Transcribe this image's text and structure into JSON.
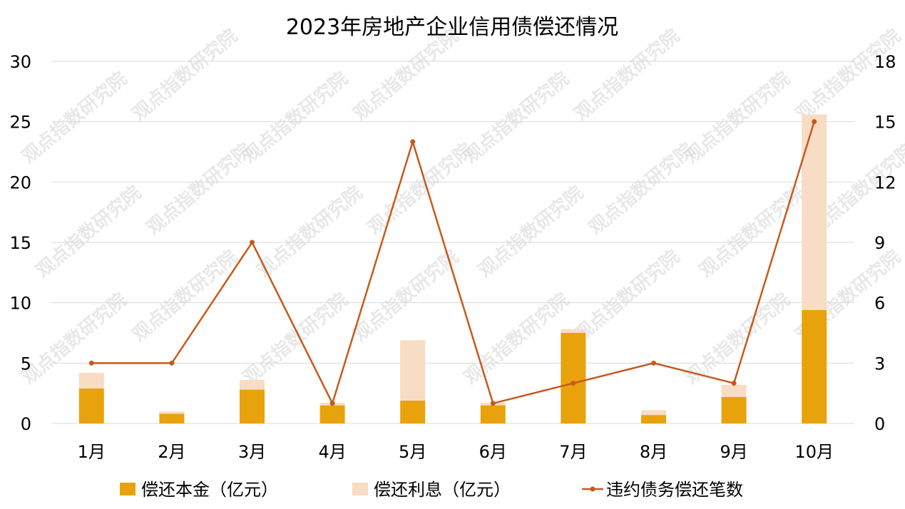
{
  "chart_data": {
    "type": "bar",
    "title": "2023年房地产企业信用债偿还情况",
    "categories": [
      "1月",
      "2月",
      "3月",
      "4月",
      "5月",
      "6月",
      "7月",
      "8月",
      "9月",
      "10月"
    ],
    "series": [
      {
        "name": "偿还本金（亿元）",
        "type": "bar",
        "stack": "main",
        "axis": "left",
        "color": "#E8A30C",
        "values": [
          2.9,
          0.8,
          2.8,
          1.5,
          1.9,
          1.5,
          7.5,
          0.7,
          2.2,
          9.4
        ]
      },
      {
        "name": "偿还利息（亿元）",
        "type": "bar",
        "stack": "main",
        "axis": "left",
        "color": "#F8DCC4",
        "values": [
          1.3,
          0.2,
          0.8,
          0.2,
          5.0,
          0.2,
          0.3,
          0.4,
          1.0,
          16.2
        ]
      },
      {
        "name": "违约债务偿还笔数",
        "type": "line",
        "axis": "right",
        "color": "#C55A1E",
        "values": [
          3,
          3,
          9,
          1,
          14,
          1,
          2,
          3,
          2,
          15
        ]
      }
    ],
    "y_left": {
      "ylim": [
        0,
        30
      ],
      "ticks": [
        "0",
        "5",
        "10",
        "15",
        "20",
        "25",
        "30"
      ]
    },
    "y_right": {
      "ylim": [
        0,
        18
      ],
      "ticks": [
        "0",
        "3",
        "6",
        "9",
        "12",
        "15",
        "18"
      ]
    },
    "grid": true,
    "legend_position": "bottom"
  },
  "watermark_text": "观点指数研究院"
}
